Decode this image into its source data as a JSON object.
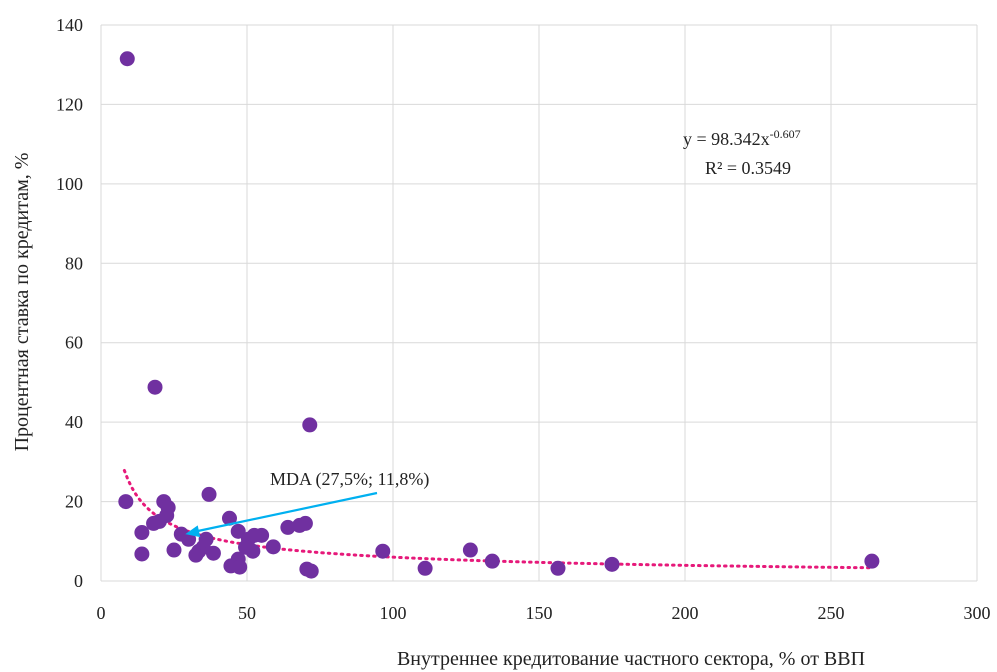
{
  "chart_data": {
    "type": "scatter",
    "xlabel": "Внутреннее кредитование частного сектора, % от ВВП",
    "ylabel": "Процентная ставка по кредитам, %",
    "xlim": [
      0,
      300
    ],
    "ylim": [
      0,
      140
    ],
    "x_ticks": [
      0,
      50,
      100,
      150,
      200,
      250,
      300
    ],
    "y_ticks": [
      0,
      20,
      40,
      60,
      80,
      100,
      120,
      140
    ],
    "grid": true,
    "point_color": "#7030a0",
    "trend_color": "#e6197a",
    "arrow_color": "#00b0f0",
    "trendline": {
      "type": "power",
      "a": 98.342,
      "b": -0.607,
      "x_range": [
        8,
        263
      ]
    },
    "equation": {
      "text": "y = 98.342x",
      "exponent": "-0.607",
      "r2": "R² = 0.3549"
    },
    "annotation": {
      "text": "MDA (27,5%; 11,8%)",
      "point": [
        27.5,
        11.8
      ]
    },
    "points": [
      [
        9,
        131.5
      ],
      [
        18.5,
        48.8
      ],
      [
        71.5,
        39.3
      ],
      [
        8.5,
        20
      ],
      [
        21.5,
        20
      ],
      [
        23,
        18.5
      ],
      [
        22.5,
        16.5
      ],
      [
        20,
        15
      ],
      [
        18,
        14.5
      ],
      [
        14,
        12.2
      ],
      [
        27.5,
        11.8
      ],
      [
        30,
        10.5
      ],
      [
        36,
        10.5
      ],
      [
        35,
        8.5
      ],
      [
        33.5,
        7.5
      ],
      [
        32.5,
        6.5
      ],
      [
        14,
        6.8
      ],
      [
        25,
        7.8
      ],
      [
        38.5,
        7
      ],
      [
        37,
        21.8
      ],
      [
        44,
        15.8
      ],
      [
        47,
        12.5
      ],
      [
        50.5,
        10.5
      ],
      [
        52.5,
        11.5
      ],
      [
        55,
        11.5
      ],
      [
        49.5,
        8.5
      ],
      [
        52,
        7.5
      ],
      [
        47,
        5.5
      ],
      [
        44.5,
        3.8
      ],
      [
        47.5,
        3.5
      ],
      [
        59,
        8.6
      ],
      [
        64,
        13.5
      ],
      [
        68,
        14
      ],
      [
        70,
        14.5
      ],
      [
        70.5,
        3
      ],
      [
        72,
        2.5
      ],
      [
        96.5,
        7.5
      ],
      [
        111,
        3.2
      ],
      [
        126.5,
        7.8
      ],
      [
        134,
        5
      ],
      [
        156.5,
        3.2
      ],
      [
        175,
        4.2
      ],
      [
        264,
        5
      ]
    ]
  },
  "colors": {
    "background": "#ffffff",
    "grid": "#d9d9d9",
    "text": "#222222"
  }
}
